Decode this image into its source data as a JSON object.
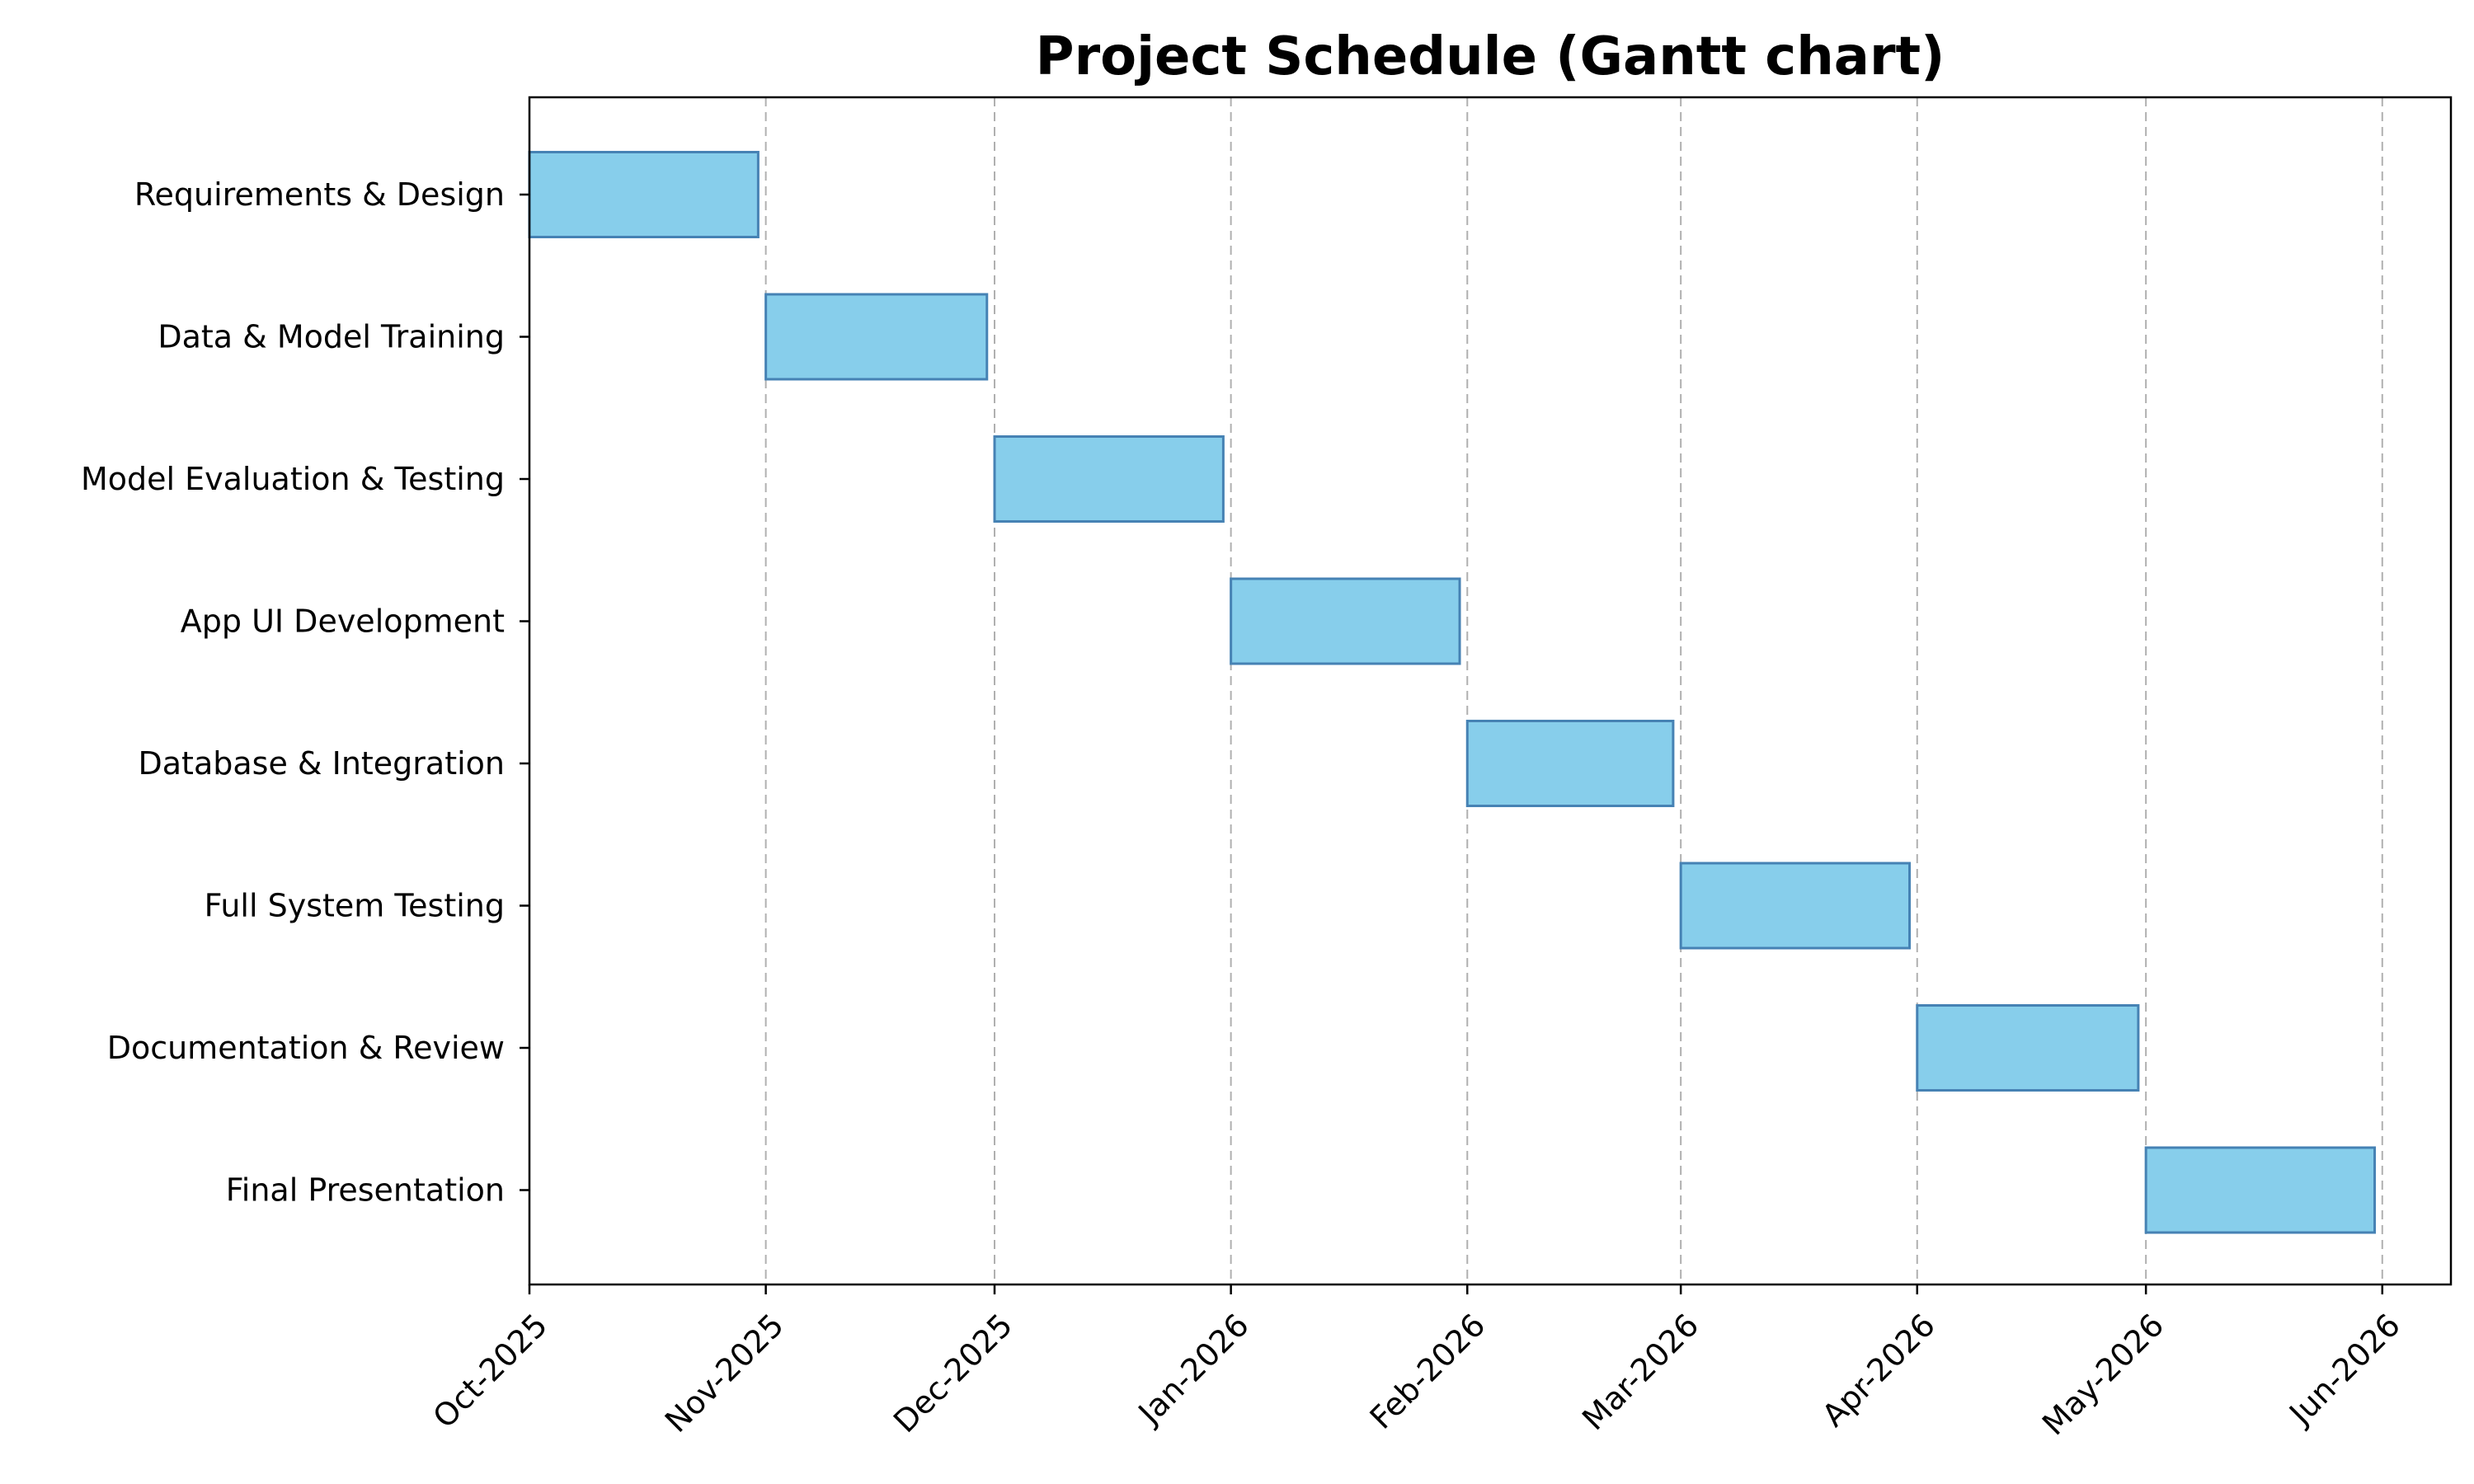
{
  "chart_data": {
    "type": "bar",
    "orientation": "horizontal",
    "title": "Project Schedule (Gantt chart)",
    "xlabel": "",
    "ylabel": "",
    "grid": "x-axis dashed vertical lines",
    "x_scale": "date",
    "xlim": [
      "2025-10-01",
      "2026-06-10"
    ],
    "x_ticks": [
      {
        "date": "2025-10-01",
        "label": "Oct-2025"
      },
      {
        "date": "2025-11-01",
        "label": "Nov-2025"
      },
      {
        "date": "2025-12-01",
        "label": "Dec-2025"
      },
      {
        "date": "2026-01-01",
        "label": "Jan-2026"
      },
      {
        "date": "2026-02-01",
        "label": "Feb-2026"
      },
      {
        "date": "2026-03-01",
        "label": "Mar-2026"
      },
      {
        "date": "2026-04-01",
        "label": "Apr-2026"
      },
      {
        "date": "2026-05-01",
        "label": "May-2026"
      },
      {
        "date": "2026-06-01",
        "label": "Jun-2026"
      }
    ],
    "tasks": [
      {
        "name": "Requirements & Design",
        "start": "2025-10-01",
        "end": "2025-10-31"
      },
      {
        "name": "Data & Model Training",
        "start": "2025-11-01",
        "end": "2025-11-30"
      },
      {
        "name": "Model Evaluation & Testing",
        "start": "2025-12-01",
        "end": "2025-12-31"
      },
      {
        "name": "App UI Development",
        "start": "2026-01-01",
        "end": "2026-01-31"
      },
      {
        "name": "Database & Integration",
        "start": "2026-02-01",
        "end": "2026-02-28"
      },
      {
        "name": "Full System Testing",
        "start": "2026-03-01",
        "end": "2026-03-31"
      },
      {
        "name": "Documentation & Review",
        "start": "2026-04-01",
        "end": "2026-04-30"
      },
      {
        "name": "Final Presentation",
        "start": "2026-05-01",
        "end": "2026-05-31"
      }
    ],
    "colors": {
      "bar_fill": "#87ceeb",
      "bar_edge": "#4682b4",
      "grid": "#b0b0b0"
    }
  }
}
